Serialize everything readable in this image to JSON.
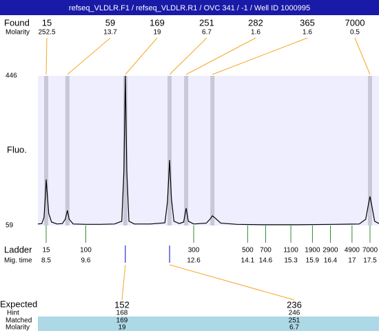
{
  "header": {
    "title": "refseq_VLDLR.F1 / refseq_VLDLR.R1 / OVC 341 / -1 / Well ID 1000995"
  },
  "labels": {
    "found": "Found",
    "found_molarity": "Molarity",
    "y_axis": "Fluo.",
    "ladder": "Ladder",
    "mig_time": "Mig. time",
    "expected": "Expected",
    "hint": "Hint",
    "matched": "Matched",
    "molarity": "Molarity"
  },
  "y_axis": {
    "ylim": [
      59,
      446
    ],
    "ticks": [
      446,
      59
    ]
  },
  "x_axis": {
    "xlim": [
      8.27,
      17.75
    ]
  },
  "found": [
    {
      "size": 15,
      "molarity": 252.5,
      "time": 8.5
    },
    {
      "size": 59,
      "molarity": 13.7,
      "time": 9.09
    },
    {
      "size": 169,
      "molarity": 19,
      "time": 10.7
    },
    {
      "size": 251,
      "molarity": 6.7,
      "time": 11.93
    },
    {
      "size": 282,
      "molarity": 1.6,
      "time": 12.39
    },
    {
      "size": 365,
      "molarity": 1.6,
      "time": 13.12
    },
    {
      "size": 7000,
      "molarity": 0.5,
      "time": 17.5
    }
  ],
  "ladder": [
    {
      "size": 15,
      "time": 8.5
    },
    {
      "size": 100,
      "time": 9.6
    },
    {
      "size": 300,
      "time": 12.6
    },
    {
      "size": 500,
      "time": 14.1
    },
    {
      "size": 700,
      "time": 14.6
    },
    {
      "size": 1100,
      "time": 15.3
    },
    {
      "size": 1900,
      "time": 15.9
    },
    {
      "size": 2900,
      "time": 16.4
    },
    {
      "size": 4900,
      "time": 17
    },
    {
      "size": 7000,
      "time": 17.5
    }
  ],
  "expected": [
    {
      "expected": 152,
      "hint": 168,
      "matched": 169,
      "molarity": 19
    },
    {
      "expected": 236,
      "hint": 246,
      "matched": 251,
      "molarity": 6.7
    }
  ],
  "trace": {
    "color": "#000000",
    "x": [
      8.27,
      8.38,
      8.44,
      8.48,
      8.5,
      8.53,
      8.57,
      8.65,
      8.8,
      8.95,
      9.03,
      9.09,
      9.14,
      9.25,
      9.6,
      10.0,
      10.4,
      10.6,
      10.66,
      10.7,
      10.74,
      10.8,
      10.95,
      11.4,
      11.8,
      11.87,
      11.93,
      11.98,
      12.05,
      12.2,
      12.32,
      12.39,
      12.45,
      12.6,
      12.95,
      13.05,
      13.12,
      13.2,
      13.35,
      13.8,
      14.5,
      15.5,
      16.5,
      17.2,
      17.38,
      17.45,
      17.5,
      17.56,
      17.63,
      17.75
    ],
    "values": [
      63,
      64,
      80,
      140,
      178,
      140,
      90,
      68,
      63,
      64,
      75,
      98,
      75,
      63,
      62,
      62,
      63,
      70,
      200,
      446,
      200,
      70,
      63,
      63,
      66,
      120,
      228,
      130,
      70,
      64,
      68,
      104,
      70,
      63,
      65,
      75,
      84,
      78,
      65,
      62,
      61,
      61,
      62,
      63,
      75,
      110,
      134,
      105,
      70,
      64
    ]
  }
}
